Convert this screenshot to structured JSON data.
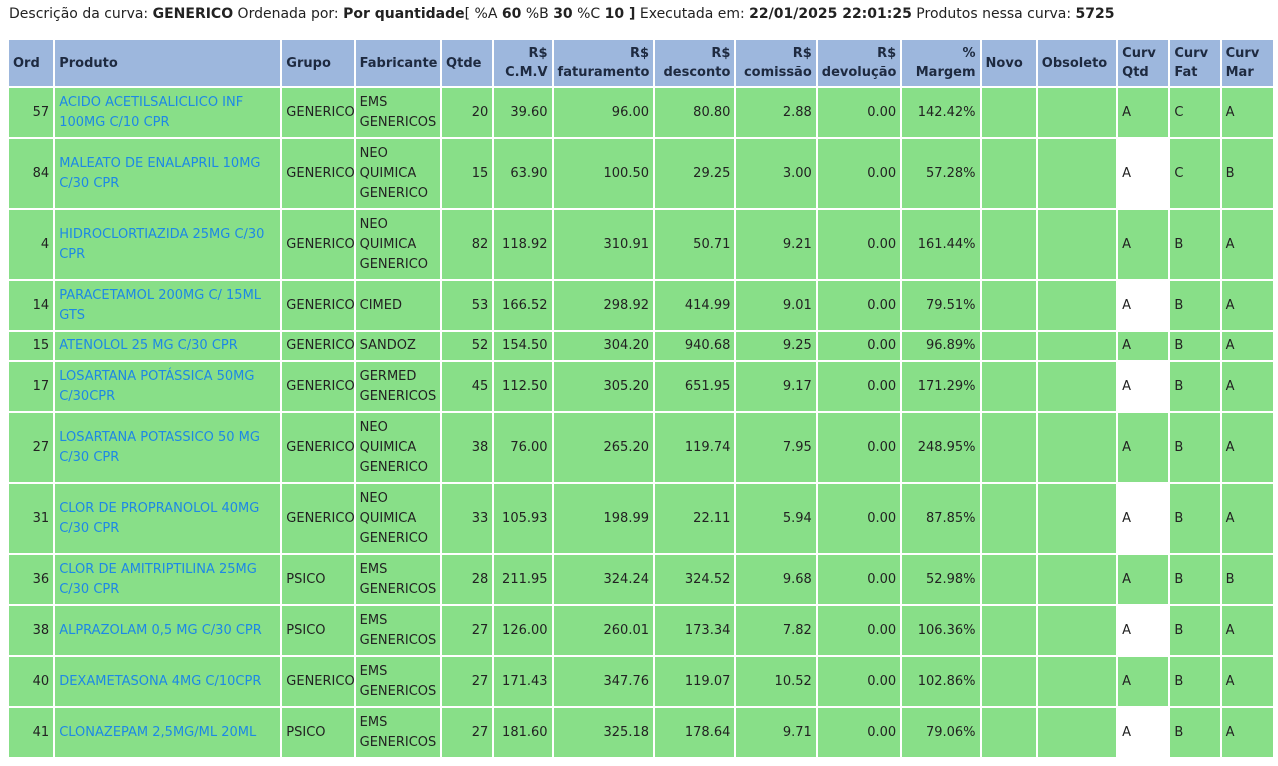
{
  "summary": {
    "descricao_label": "Descrição da curva: ",
    "descricao_value": "GENERICO",
    "ordenada_label": " Ordenada por: ",
    "ordenada_value": "Por quantidade",
    "pct_open": "[ %A ",
    "pct_a": "60",
    "pct_b_label": " %B ",
    "pct_b": "30",
    "pct_c_label": " %C ",
    "pct_c": "10",
    "pct_close": " ]",
    "executada_label": " Executada em: ",
    "executada_value": "22/01/2025 22:01:25",
    "produtos_label": " Produtos nessa curva: ",
    "produtos_value": "5725"
  },
  "columns": {
    "ord": "Ord",
    "produto": "Produto",
    "grupo": "Grupo",
    "fabricante": "Fabricante",
    "qtde": "Qtde",
    "cmv_1": "R$",
    "cmv_2": "C.M.V",
    "fat_1": "R$",
    "fat_2": "faturamento",
    "desc_1": "R$",
    "desc_2": "desconto",
    "com_1": "R$",
    "com_2": "comissão",
    "dev_1": "R$",
    "dev_2": "devolução",
    "marg_1": "%",
    "marg_2": "Margem",
    "novo": "Novo",
    "obsoleto": "Obsoleto",
    "cq_1": "Curv",
    "cq_2": "Qtd",
    "cf_1": "Curv",
    "cf_2": "Fat",
    "cm_1": "Curv",
    "cm_2": "Mar"
  },
  "rows": [
    {
      "ord": "57",
      "produto": "ACIDO ACETILSALICLICO INF 100MG C/10 CPR",
      "grupo": "GENERICO",
      "fabricante": "EMS GENERICOS",
      "qtde": "20",
      "cmv": "39.60",
      "faturamento": "96.00",
      "desconto": "80.80",
      "comissao": "2.88",
      "devolucao": "0.00",
      "margem": "142.42%",
      "novo": "",
      "obsoleto": "",
      "curv_qtd": "A",
      "curv_fat": "C",
      "curv_mar": "A"
    },
    {
      "ord": "84",
      "produto": "MALEATO DE ENALAPRIL 10MG C/30 CPR",
      "grupo": "GENERICO",
      "fabricante": "NEO QUIMICA GENERICO",
      "qtde": "15",
      "cmv": "63.90",
      "faturamento": "100.50",
      "desconto": "29.25",
      "comissao": "3.00",
      "devolucao": "0.00",
      "margem": "57.28%",
      "novo": "",
      "obsoleto": "",
      "curv_qtd": "A",
      "curv_fat": "C",
      "curv_mar": "B"
    },
    {
      "ord": "4",
      "produto": "HIDROCLORTIAZIDA 25MG C/30 CPR",
      "grupo": "GENERICO",
      "fabricante": "NEO QUIMICA GENERICO",
      "qtde": "82",
      "cmv": "118.92",
      "faturamento": "310.91",
      "desconto": "50.71",
      "comissao": "9.21",
      "devolucao": "0.00",
      "margem": "161.44%",
      "novo": "",
      "obsoleto": "",
      "curv_qtd": "A",
      "curv_fat": "B",
      "curv_mar": "A"
    },
    {
      "ord": "14",
      "produto": "PARACETAMOL 200MG C/ 15ML GTS",
      "grupo": "GENERICO",
      "fabricante": "CIMED",
      "qtde": "53",
      "cmv": "166.52",
      "faturamento": "298.92",
      "desconto": "414.99",
      "comissao": "9.01",
      "devolucao": "0.00",
      "margem": "79.51%",
      "novo": "",
      "obsoleto": "",
      "curv_qtd": "A",
      "curv_fat": "B",
      "curv_mar": "A"
    },
    {
      "ord": "15",
      "produto": "ATENOLOL 25 MG C/30 CPR",
      "grupo": "GENERICO",
      "fabricante": "SANDOZ",
      "qtde": "52",
      "cmv": "154.50",
      "faturamento": "304.20",
      "desconto": "940.68",
      "comissao": "9.25",
      "devolucao": "0.00",
      "margem": "96.89%",
      "novo": "",
      "obsoleto": "",
      "curv_qtd": "A",
      "curv_fat": "B",
      "curv_mar": "A"
    },
    {
      "ord": "17",
      "produto": "LOSARTANA POTÁSSICA 50MG C/30CPR",
      "grupo": "GENERICO",
      "fabricante": "GERMED GENERICOS",
      "qtde": "45",
      "cmv": "112.50",
      "faturamento": "305.20",
      "desconto": "651.95",
      "comissao": "9.17",
      "devolucao": "0.00",
      "margem": "171.29%",
      "novo": "",
      "obsoleto": "",
      "curv_qtd": "A",
      "curv_fat": "B",
      "curv_mar": "A"
    },
    {
      "ord": "27",
      "produto": "LOSARTANA POTASSICO 50 MG C/30 CPR",
      "grupo": "GENERICO",
      "fabricante": "NEO QUIMICA GENERICO",
      "qtde": "38",
      "cmv": "76.00",
      "faturamento": "265.20",
      "desconto": "119.74",
      "comissao": "7.95",
      "devolucao": "0.00",
      "margem": "248.95%",
      "novo": "",
      "obsoleto": "",
      "curv_qtd": "A",
      "curv_fat": "B",
      "curv_mar": "A"
    },
    {
      "ord": "31",
      "produto": "CLOR DE PROPRANOLOL 40MG C/30 CPR",
      "grupo": "GENERICO",
      "fabricante": "NEO QUIMICA GENERICO",
      "qtde": "33",
      "cmv": "105.93",
      "faturamento": "198.99",
      "desconto": "22.11",
      "comissao": "5.94",
      "devolucao": "0.00",
      "margem": "87.85%",
      "novo": "",
      "obsoleto": "",
      "curv_qtd": "A",
      "curv_fat": "B",
      "curv_mar": "A"
    },
    {
      "ord": "36",
      "produto": "CLOR DE AMITRIPTILINA 25MG C/30 CPR",
      "grupo": "PSICO",
      "fabricante": "EMS GENERICOS",
      "qtde": "28",
      "cmv": "211.95",
      "faturamento": "324.24",
      "desconto": "324.52",
      "comissao": "9.68",
      "devolucao": "0.00",
      "margem": "52.98%",
      "novo": "",
      "obsoleto": "",
      "curv_qtd": "A",
      "curv_fat": "B",
      "curv_mar": "B"
    },
    {
      "ord": "38",
      "produto": "ALPRAZOLAM 0,5 MG C/30 CPR",
      "grupo": "PSICO",
      "fabricante": "EMS GENERICOS",
      "qtde": "27",
      "cmv": "126.00",
      "faturamento": "260.01",
      "desconto": "173.34",
      "comissao": "7.82",
      "devolucao": "0.00",
      "margem": "106.36%",
      "novo": "",
      "obsoleto": "",
      "curv_qtd": "A",
      "curv_fat": "B",
      "curv_mar": "A"
    },
    {
      "ord": "40",
      "produto": "DEXAMETASONA 4MG C/10CPR",
      "grupo": "GENERICO",
      "fabricante": "EMS GENERICOS",
      "qtde": "27",
      "cmv": "171.43",
      "faturamento": "347.76",
      "desconto": "119.07",
      "comissao": "10.52",
      "devolucao": "0.00",
      "margem": "102.86%",
      "novo": "",
      "obsoleto": "",
      "curv_qtd": "A",
      "curv_fat": "B",
      "curv_mar": "A"
    },
    {
      "ord": "41",
      "produto": "CLONAZEPAM 2,5MG/ML 20ML",
      "grupo": "PSICO",
      "fabricante": "EMS GENERICOS",
      "qtde": "27",
      "cmv": "181.60",
      "faturamento": "325.18",
      "desconto": "178.64",
      "comissao": "9.71",
      "devolucao": "0.00",
      "margem": "79.06%",
      "novo": "",
      "obsoleto": "",
      "curv_qtd": "A",
      "curv_fat": "B",
      "curv_mar": "A"
    }
  ]
}
